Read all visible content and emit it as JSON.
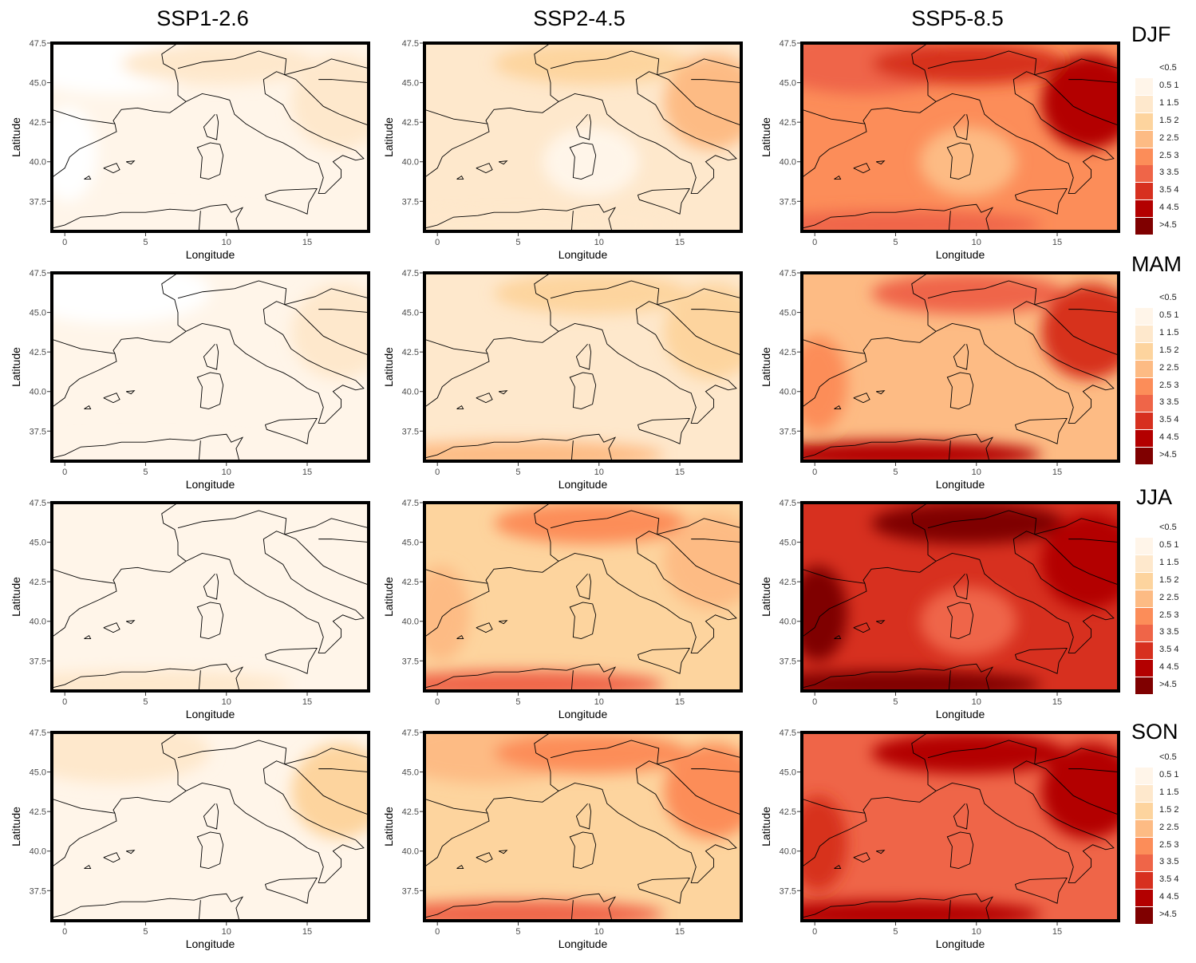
{
  "column_titles": [
    "SSP1-2.6",
    "SSP2-4.5",
    "SSP5-8.5"
  ],
  "row_titles": [
    "DJF",
    "MAM",
    "JJA",
    "SON"
  ],
  "legend": {
    "labels": [
      "<0.5",
      "0.5 1",
      "1 1.5",
      "1.5 2",
      "2 2.5",
      "2.5 3",
      "3 3.5",
      "3.5 4",
      "4 4.5",
      ">4.5"
    ],
    "colors": [
      "#ffffff",
      "#fff5e9",
      "#fee8cc",
      "#fdd49e",
      "#fdbb84",
      "#fc8d59",
      "#ef6548",
      "#d7301f",
      "#b30000",
      "#7f0000"
    ]
  },
  "axes": {
    "xlabel": "Longitude",
    "ylabel": "Latitude",
    "xticks": [
      "0",
      "5",
      "10",
      "15"
    ],
    "yticks": [
      "47.5",
      "45.0",
      "42.5",
      "40.0",
      "37.5"
    ]
  },
  "chart_data": {
    "type": "heatmap",
    "xlabel": "Longitude",
    "ylabel": "Latitude",
    "xlim": [
      -0.8,
      18.8
    ],
    "ylim": [
      35.6,
      47.5
    ],
    "xtick_values": [
      0,
      5,
      10,
      15
    ],
    "ytick_values": [
      47.5,
      45.0,
      42.5,
      40.0,
      37.5
    ],
    "class_note_units": "legend class index (0 = <0.5 ... 9 = >4.5)",
    "panels": [
      {
        "row": "DJF",
        "scenario": "SSP1-2.6",
        "base": 1,
        "regions": {
          "iberia": 0,
          "north": 0,
          "alps": 2,
          "balkans": 2,
          "africa": 1
        }
      },
      {
        "row": "DJF",
        "scenario": "SSP2-4.5",
        "base": 2,
        "regions": {
          "sea": 1,
          "alps": 3,
          "balkans": 4,
          "africa": 2
        }
      },
      {
        "row": "DJF",
        "scenario": "SSP5-8.5",
        "base": 5,
        "regions": {
          "sea": 4,
          "north": 6,
          "alps": 7,
          "balkans": 8,
          "africa": 6
        }
      },
      {
        "row": "MAM",
        "scenario": "SSP1-2.6",
        "base": 1,
        "regions": {
          "north": 0,
          "balkans": 2,
          "africa": 1
        }
      },
      {
        "row": "MAM",
        "scenario": "SSP2-4.5",
        "base": 2,
        "regions": {
          "alps": 3,
          "balkans": 3,
          "africa": 4
        }
      },
      {
        "row": "MAM",
        "scenario": "SSP5-8.5",
        "base": 4,
        "regions": {
          "iberia": 5,
          "alps": 6,
          "balkans": 7,
          "africa": 8
        }
      },
      {
        "row": "JJA",
        "scenario": "SSP1-2.6",
        "base": 1,
        "regions": {
          "africa": 2
        }
      },
      {
        "row": "JJA",
        "scenario": "SSP2-4.5",
        "base": 3,
        "regions": {
          "iberia": 4,
          "alps": 5,
          "balkans": 4,
          "africa": 6
        }
      },
      {
        "row": "JJA",
        "scenario": "SSP5-8.5",
        "base": 7,
        "regions": {
          "sea": 6,
          "iberia": 9,
          "alps": 9,
          "balkans": 8,
          "africa": 9
        }
      },
      {
        "row": "SON",
        "scenario": "SSP1-2.6",
        "base": 1,
        "regions": {
          "north": 2,
          "balkans": 3
        }
      },
      {
        "row": "SON",
        "scenario": "SSP2-4.5",
        "base": 3,
        "regions": {
          "north": 4,
          "alps": 5,
          "balkans": 5,
          "africa": 6
        }
      },
      {
        "row": "SON",
        "scenario": "SSP5-8.5",
        "base": 6,
        "regions": {
          "iberia": 7,
          "alps": 8,
          "balkans": 8,
          "africa": 8
        }
      }
    ]
  }
}
